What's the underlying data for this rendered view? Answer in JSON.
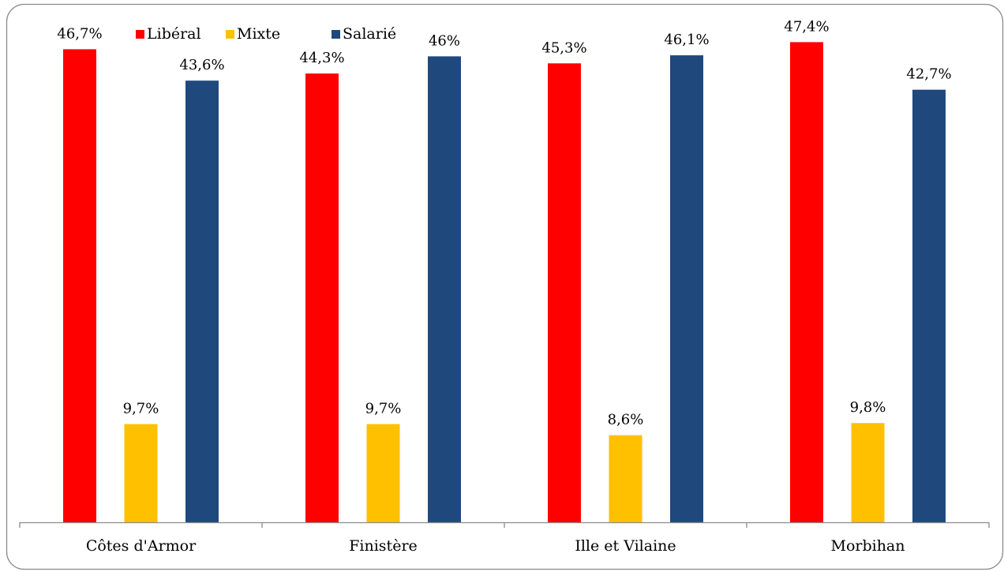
{
  "chart_data": {
    "type": "bar",
    "categories": [
      "Côtes d'Armor",
      "Finistère",
      "Ille et Vilaine",
      "Morbihan"
    ],
    "series": [
      {
        "name": "Libéral",
        "color": "#ff0000",
        "values": [
          46.7,
          44.3,
          45.3,
          47.4
        ],
        "labels": [
          "46,7%",
          "44,3%",
          "45,3%",
          "47,4%"
        ]
      },
      {
        "name": "Mixte",
        "color": "#ffc000",
        "values": [
          9.7,
          9.7,
          8.6,
          9.8
        ],
        "labels": [
          "9,7%",
          "9,7%",
          "8,6%",
          "9,8%"
        ]
      },
      {
        "name": "Salarié",
        "color": "#1f497d",
        "values": [
          43.6,
          46,
          46.1,
          42.7
        ],
        "labels": [
          "43,6%",
          "46%",
          "46,1%",
          "42,7%"
        ]
      }
    ],
    "ylim": [
      0,
      50
    ],
    "grid": false,
    "legend_position": "top-left"
  }
}
